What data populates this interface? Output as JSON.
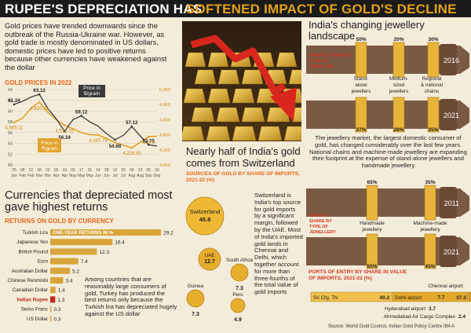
{
  "banner": {
    "left": "RUPEE'S DEPRECIATION HAS",
    "right": "SOFTENED IMPACT OF GOLD'S DECLINE"
  },
  "intro": "Gold prices have trended downwards since the outbreak of the Russia-Ukraine war. However, as gold trade is mostly denominated in US dollars, domestic prices have led to positive returns because other currencies have weakened against the dollar",
  "gold_title": "GOLD PRICES IN 2022",
  "callout_usd": "Price in $/gram",
  "callout_inr": "Price in ₹/gram",
  "currency_title": "Currencies that depreciated most gave highest returns",
  "currency_subtitle": "RETURNS ON GOLD BY CURRENCY",
  "currency_series_label": "ONE-YEAR RETURNS IN %",
  "currency_note": "Among countries that are reasonably large consumers of gold, Turkey has produced the best returns only because the Turkish lira has depreciated hugely against the US dollar",
  "swiss_title": "Nearly half of India's gold comes from Switzerland",
  "swiss_subtitle": "SOURCES OF GOLD BY SHARE OF IMPORTS, 2021-22 (%)",
  "swiss_note": "Switzerland is India's top source for gold imports by a significant margin, followed by the UAE. Most of India's imported gold lands in Chennai and Delhi, which together account for more than three-fourths of the total value of gold imports",
  "jewel_title": "India's changing jewellery landscape",
  "jewel_share_label": "MARKET SHARE BY TYPE OF JEWELLER",
  "jewel_share_label2": "MARKET SHARE BY TYPE OF JEWELLERY",
  "jewel_desc": "The jewellery market, the largest domestic consumer of gold, has changed considerably over the last few years. National chains and machine-made jewellery are expanding their footprint at the expense of stand-alone jewellers and handmade jewellery",
  "ports_title": "PORTS OF ENTRY BY SHARE IN VALUE OF IMPORTS, 2021-22 (%)",
  "source": "Source: World Gold Council, Indian Gold Policy Centre IIM-A",
  "chart_data": [
    {
      "type": "line",
      "title": "GOLD PRICES IN 2022",
      "x": [
        "Jan 25",
        "Feb 8",
        "Feb 22",
        "Mar 8",
        "Mar 22",
        "Apr 5",
        "Apr 19",
        "May 3",
        "May 17",
        "May 31",
        "Jun 14",
        "Jun 28",
        "Jul 12",
        "Jul 26",
        "Aug 9",
        "Aug 23",
        "Sep 6",
        "Sep 20"
      ],
      "series": [
        {
          "name": "Price in $/gram",
          "axis": "left",
          "values": [
            61.24,
            61.8,
            62.6,
            63.12,
            60.5,
            58.6,
            56.24,
            58.4,
            59.12,
            58.0,
            57.2,
            55.8,
            54.68,
            55.5,
            57.12,
            55.4,
            53.75,
            53.5
          ]
        },
        {
          "name": "Price in ₹/gram",
          "axis": "right",
          "values": [
            4565.11,
            4620,
            4750,
            4833.26,
            4700,
            4600,
            4525.35,
            4480,
            4430,
            4400,
            4397.79,
            4350,
            4300,
            4260,
            4226.85,
            4300,
            4376,
            4380
          ]
        }
      ],
      "xtick_labels": [
        "25",
        "08",
        "22",
        "08",
        "22",
        "05",
        "19",
        "03",
        "17",
        "31",
        "14",
        "28",
        "12",
        "26",
        "09",
        "23",
        "06",
        "20"
      ],
      "month_labels": [
        "Jan",
        "Feb",
        "Feb",
        "Mar",
        "Mar",
        "Apr",
        "Apr",
        "May",
        "May",
        "May",
        "Jun",
        "Jun",
        "Jul",
        "Jul",
        "Aug",
        "Aug",
        "Sep",
        "Sep"
      ],
      "ylim_left": [
        50,
        64
      ],
      "yticks_left": [
        "64",
        "62",
        "60",
        "58",
        "56",
        "54",
        "52",
        "50"
      ],
      "ylim_right": [
        4000,
        5000
      ],
      "yticks_right": [
        "5,000",
        "4,800",
        "4,600",
        "4,400",
        "4,200",
        "4,000"
      ],
      "labels_usd": [
        "61.24",
        "63.12",
        "56.24",
        "59.12",
        "54.68",
        "57.12",
        "53.75"
      ],
      "labels_inr": [
        "4,565.11",
        "4,833.26",
        "4,525.35",
        "4,397.79",
        "4,226.85",
        "4,376"
      ]
    },
    {
      "type": "bar",
      "title": "RETURNS ON GOLD BY CURRENCY",
      "categories": [
        "Turkish Lira",
        "Japanese Yen",
        "British Pound",
        "Euro",
        "Australian Dollar",
        "Chinese Renminbi",
        "Canadian Dollar",
        "Indian Rupee",
        "Swiss Franc",
        "US Dollar"
      ],
      "values": [
        29.2,
        16.4,
        12.3,
        7.4,
        5.2,
        3.4,
        1.4,
        1.3,
        0.3,
        0.3
      ],
      "highlight": "Indian Rupee",
      "xlim": [
        0,
        30
      ]
    },
    {
      "type": "pie",
      "title": "SOURCES OF GOLD BY SHARE OF IMPORTS, 2021-22 (%)",
      "categories": [
        "Switzerland",
        "UAE",
        "South Africa",
        "Guinea",
        "Peru"
      ],
      "values": [
        45.8,
        12.7,
        7.3,
        7.3,
        4.9
      ]
    },
    {
      "type": "table",
      "title": "India's changing jewellery landscape — by type of jeweller",
      "columns": [
        "Stand-alone jewellers",
        "Medium-sized jewellers",
        "Regional & national chains"
      ],
      "rows": [
        {
          "year": "2016",
          "values": [
            50,
            20,
            30
          ]
        },
        {
          "year": "2021",
          "values": [
            37,
            28,
            35
          ]
        }
      ]
    },
    {
      "type": "table",
      "title": "India's changing jewellery landscape — by type of jewellery",
      "columns": [
        "Handmade jewellery",
        "Machine-made jewellery"
      ],
      "rows": [
        {
          "year": "2011",
          "values": [
            65,
            35
          ]
        },
        {
          "year": "2021",
          "values": [
            55,
            45
          ]
        }
      ]
    },
    {
      "type": "bar",
      "title": "PORTS OF ENTRY BY SHARE IN VALUE OF IMPORTS, 2021-22 (%)",
      "categories": [
        "Sri City, TN",
        "Delhi airport",
        "Chennai airport",
        "Hyderabad airport",
        "Ahmedabad Air Cargo Complex"
      ],
      "values": [
        40.2,
        37.3,
        7.7,
        3.7,
        2.4
      ],
      "value_labels": [
        "40.2",
        "37.3",
        "7.7",
        "3.7",
        "2.4"
      ]
    }
  ]
}
